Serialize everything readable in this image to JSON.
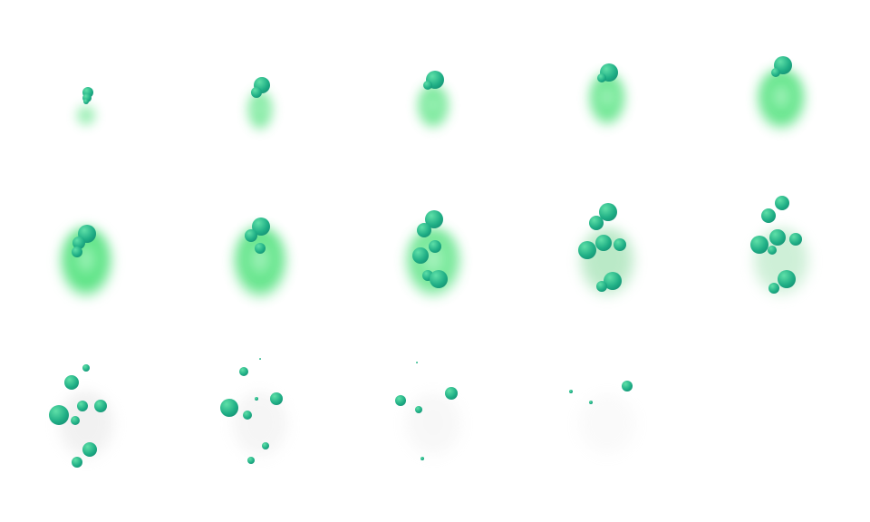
{
  "sheet": {
    "frame_count": 14,
    "columns": 5,
    "colors": {
      "background": "#ffffff",
      "smoke_green": "#4ee07a",
      "smoke_grey": "#d8d8d8",
      "bubble_light": "#5fe0a8",
      "bubble_dark": "#0f7f6a"
    },
    "smoke_intensity": [
      0.7,
      0.8,
      0.85,
      0.9,
      0.95,
      1.0,
      0.95,
      0.85,
      0.7,
      0.5,
      0.35,
      0.25,
      0.18,
      0.12
    ],
    "smoke_greenness": [
      1,
      1,
      1,
      1,
      1,
      1,
      1,
      0.7,
      0.5,
      0.15,
      0,
      0,
      0,
      0
    ]
  }
}
